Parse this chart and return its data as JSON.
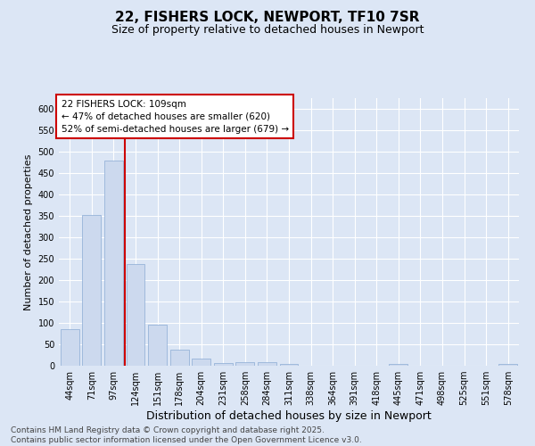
{
  "title": "22, FISHERS LOCK, NEWPORT, TF10 7SR",
  "subtitle": "Size of property relative to detached houses in Newport",
  "xlabel": "Distribution of detached houses by size in Newport",
  "ylabel": "Number of detached properties",
  "categories": [
    "44sqm",
    "71sqm",
    "97sqm",
    "124sqm",
    "151sqm",
    "178sqm",
    "204sqm",
    "231sqm",
    "258sqm",
    "284sqm",
    "311sqm",
    "338sqm",
    "364sqm",
    "391sqm",
    "418sqm",
    "445sqm",
    "471sqm",
    "498sqm",
    "525sqm",
    "551sqm",
    "578sqm"
  ],
  "values": [
    85,
    352,
    480,
    237,
    96,
    37,
    16,
    7,
    8,
    8,
    5,
    0,
    0,
    0,
    0,
    5,
    0,
    0,
    0,
    0,
    5
  ],
  "bar_color": "#ccd9ee",
  "bar_edge_color": "#8aaad4",
  "background_color": "#dce6f5",
  "grid_color": "#ffffff",
  "property_size_label": "22 FISHERS LOCK: 109sqm",
  "pct_smaller": 47,
  "n_smaller": 620,
  "pct_larger_semi": 52,
  "n_larger_semi": 679,
  "vline_x_index": 2.5,
  "annotation_box_color": "#ffffff",
  "annotation_box_edge": "#cc0000",
  "vline_color": "#cc0000",
  "ylim": [
    0,
    625
  ],
  "yticks": [
    0,
    50,
    100,
    150,
    200,
    250,
    300,
    350,
    400,
    450,
    500,
    550,
    600
  ],
  "footer_line1": "Contains HM Land Registry data © Crown copyright and database right 2025.",
  "footer_line2": "Contains public sector information licensed under the Open Government Licence v3.0.",
  "title_fontsize": 11,
  "subtitle_fontsize": 9,
  "xlabel_fontsize": 9,
  "ylabel_fontsize": 8,
  "tick_fontsize": 7,
  "annotation_fontsize": 7.5,
  "footer_fontsize": 6.5
}
